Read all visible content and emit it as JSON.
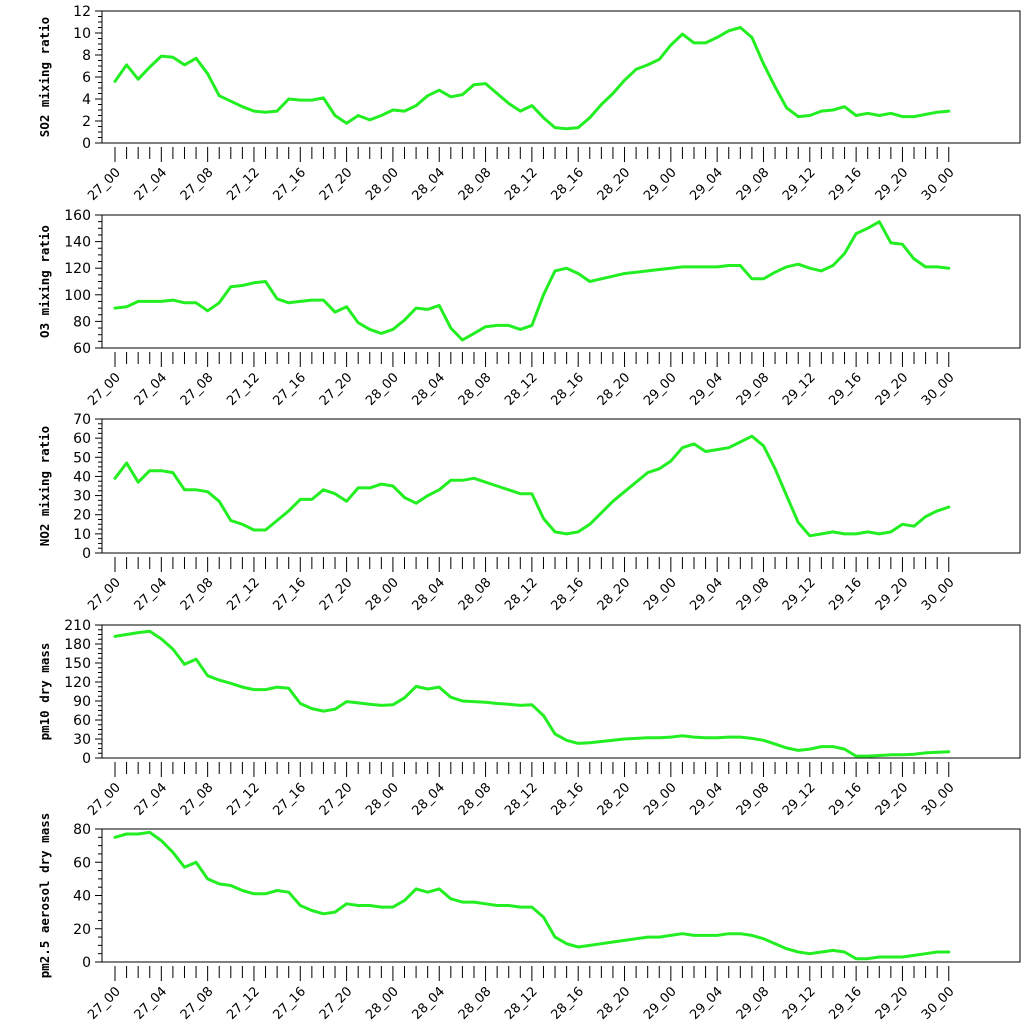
{
  "line_color": "#22ee22",
  "chart_data": [
    {
      "type": "line",
      "ylabel": "SO2 mixing ratio",
      "ylim": [
        0,
        12
      ],
      "yticks": [
        0,
        2,
        4,
        6,
        8,
        10,
        12
      ],
      "x_tick_labels": [
        "27_00",
        "27_04",
        "27_08",
        "27_12",
        "27_16",
        "27_20",
        "28_00",
        "28_04",
        "28_08",
        "28_12",
        "28_16",
        "28_20",
        "29_00",
        "29_04",
        "29_08",
        "29_12",
        "29_16",
        "29_20",
        "30_00"
      ],
      "series": [
        {
          "values": [
            5.6,
            7.1,
            5.8,
            6.9,
            7.9,
            7.8,
            7.1,
            7.7,
            6.3,
            4.3,
            3.8,
            3.3,
            2.9,
            2.8,
            2.9,
            4.0,
            3.9,
            3.9,
            4.1,
            2.5,
            1.8,
            2.5,
            2.1,
            2.5,
            3.0,
            2.9,
            3.4,
            4.3,
            4.8,
            4.2,
            4.4,
            5.3,
            5.4,
            4.5,
            3.6,
            2.9,
            3.4,
            2.3,
            1.4,
            1.3,
            1.4,
            2.3,
            3.5,
            4.5,
            5.7,
            6.7,
            7.1,
            7.6,
            8.9,
            9.9,
            9.1,
            9.1,
            9.6,
            10.2,
            10.5,
            9.6,
            7.2,
            5.1,
            3.2,
            2.4,
            2.5,
            2.9,
            3.0,
            3.3,
            2.5,
            2.7,
            2.5,
            2.7,
            2.4,
            2.4,
            2.6,
            2.8,
            2.9
          ]
        }
      ]
    },
    {
      "type": "line",
      "ylabel": "O3 mixing ratio",
      "ylim": [
        60,
        160
      ],
      "yticks": [
        60,
        80,
        100,
        120,
        140,
        160
      ],
      "x_tick_labels": [
        "27_00",
        "27_04",
        "27_08",
        "27_12",
        "27_16",
        "27_20",
        "28_00",
        "28_04",
        "28_08",
        "28_12",
        "28_16",
        "28_20",
        "29_00",
        "29_04",
        "29_08",
        "29_12",
        "29_16",
        "29_20",
        "30_00"
      ],
      "series": [
        {
          "values": [
            90,
            91,
            95,
            95,
            95,
            96,
            94,
            94,
            88,
            94,
            106,
            107,
            109,
            110,
            97,
            94,
            95,
            96,
            96,
            87,
            91,
            79,
            74,
            71,
            74,
            81,
            90,
            89,
            92,
            75,
            66,
            71,
            76,
            77,
            77,
            74,
            77,
            100,
            118,
            120,
            116,
            110,
            112,
            114,
            116,
            117,
            118,
            119,
            120,
            121,
            121,
            121,
            121,
            122,
            122,
            112,
            112,
            117,
            121,
            123,
            120,
            118,
            122,
            131,
            146,
            150,
            155,
            139,
            138,
            127,
            121,
            121,
            120
          ]
        }
      ]
    },
    {
      "type": "line",
      "ylabel": "NO2 mixing ratio",
      "ylim": [
        0,
        70
      ],
      "yticks": [
        0,
        10,
        20,
        30,
        40,
        50,
        60,
        70
      ],
      "x_tick_labels": [
        "27_00",
        "27_04",
        "27_08",
        "27_12",
        "27_16",
        "27_20",
        "28_00",
        "28_04",
        "28_08",
        "28_12",
        "28_16",
        "28_20",
        "29_00",
        "29_04",
        "29_08",
        "29_12",
        "29_16",
        "29_20",
        "30_00"
      ],
      "series": [
        {
          "values": [
            39,
            47,
            37,
            43,
            43,
            42,
            33,
            33,
            32,
            27,
            17,
            15,
            12,
            12,
            17,
            22,
            28,
            28,
            33,
            31,
            27,
            34,
            34,
            36,
            35,
            29,
            26,
            30,
            33,
            38,
            38,
            39,
            37,
            35,
            33,
            31,
            31,
            18,
            11,
            10,
            11,
            15,
            21,
            27,
            32,
            37,
            42,
            44,
            48,
            55,
            57,
            53,
            54,
            55,
            58,
            61,
            56,
            44,
            30,
            16,
            9,
            10,
            11,
            10,
            10,
            11,
            10,
            11,
            15,
            14,
            19,
            22,
            24
          ]
        }
      ]
    },
    {
      "type": "line",
      "ylabel": "pm10 dry mass",
      "ylim": [
        0,
        210
      ],
      "yticks": [
        0,
        30,
        60,
        90,
        120,
        150,
        180,
        210
      ],
      "x_tick_labels": [
        "27_00",
        "27_04",
        "27_08",
        "27_12",
        "27_16",
        "27_20",
        "28_00",
        "28_04",
        "28_08",
        "28_12",
        "28_16",
        "28_20",
        "29_00",
        "29_04",
        "29_08",
        "29_12",
        "29_16",
        "29_20",
        "30_00"
      ],
      "series": [
        {
          "values": [
            192,
            195,
            198,
            200,
            188,
            172,
            148,
            156,
            130,
            123,
            118,
            112,
            108,
            108,
            112,
            110,
            86,
            78,
            74,
            77,
            89,
            87,
            85,
            83,
            84,
            95,
            113,
            109,
            112,
            96,
            90,
            89,
            88,
            86,
            85,
            83,
            84,
            67,
            38,
            28,
            23,
            24,
            26,
            28,
            30,
            31,
            32,
            32,
            33,
            35,
            33,
            32,
            32,
            33,
            33,
            31,
            28,
            22,
            16,
            12,
            14,
            18,
            18,
            14,
            3,
            3,
            4,
            5,
            5,
            6,
            8,
            9,
            10
          ]
        }
      ]
    },
    {
      "type": "line",
      "ylabel": "pm2.5 aerosol dry mass",
      "ylim": [
        0,
        80
      ],
      "yticks": [
        0,
        20,
        40,
        60,
        80
      ],
      "x_tick_labels": [
        "27_00",
        "27_04",
        "27_08",
        "27_12",
        "27_16",
        "27_20",
        "28_00",
        "28_04",
        "28_08",
        "28_12",
        "28_16",
        "28_20",
        "29_00",
        "29_04",
        "29_08",
        "29_12",
        "29_16",
        "29_20",
        "30_00"
      ],
      "series": [
        {
          "values": [
            75,
            77,
            77,
            78,
            73,
            66,
            57,
            60,
            50,
            47,
            46,
            43,
            41,
            41,
            43,
            42,
            34,
            31,
            29,
            30,
            35,
            34,
            34,
            33,
            33,
            37,
            44,
            42,
            44,
            38,
            36,
            36,
            35,
            34,
            34,
            33,
            33,
            27,
            15,
            11,
            9,
            10,
            11,
            12,
            13,
            14,
            15,
            15,
            16,
            17,
            16,
            16,
            16,
            17,
            17,
            16,
            14,
            11,
            8,
            6,
            5,
            6,
            7,
            6,
            2,
            2,
            3,
            3,
            3,
            4,
            5,
            6,
            6
          ]
        }
      ]
    }
  ]
}
